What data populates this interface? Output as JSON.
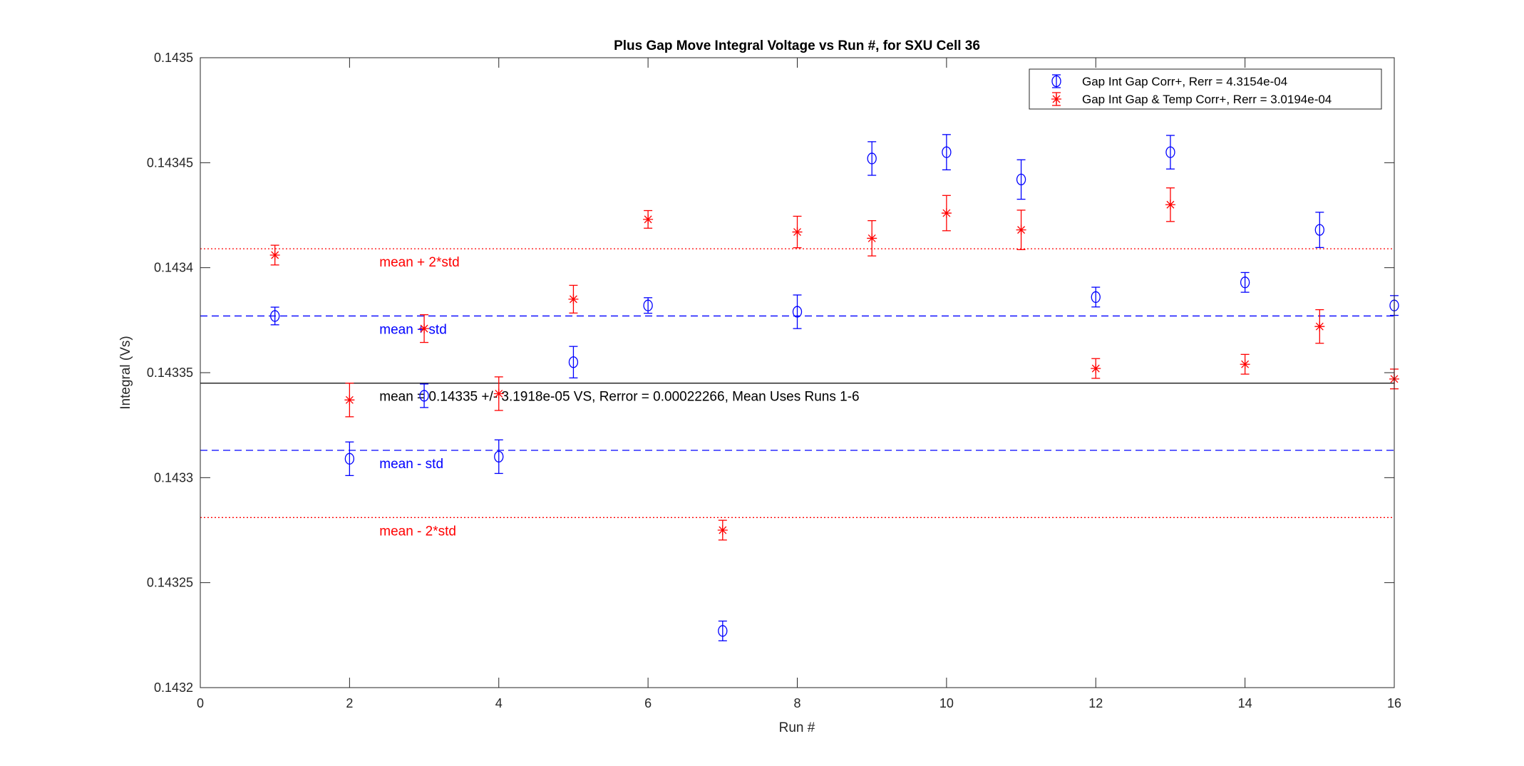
{
  "chart_data": {
    "type": "scatter",
    "title": "Plus Gap Move Integral Voltage vs Run #, for SXU Cell 36",
    "xlabel": "Run #",
    "ylabel": "Integral (Vs)",
    "xlim": [
      0,
      16
    ],
    "ylim": [
      0.1432,
      0.1435
    ],
    "xticks": [
      "0",
      "2",
      "4",
      "6",
      "8",
      "10",
      "12",
      "14",
      "16"
    ],
    "yticks": [
      "0.1432",
      "0.14325",
      "0.1433",
      "0.14335",
      "0.1434",
      "0.14345",
      "0.1435"
    ],
    "grid": false,
    "legend_position": "top-right",
    "series": [
      {
        "name": "Gap Int Gap Corr+, Rerr = 4.3154e-04",
        "marker": "circle",
        "color": "#0000ff",
        "x": [
          1,
          2,
          3,
          4,
          5,
          6,
          7,
          8,
          9,
          10,
          11,
          12,
          13,
          14,
          15,
          16
        ],
        "y": [
          0.143377,
          0.143309,
          0.143339,
          0.14331,
          0.143355,
          0.143382,
          0.143227,
          0.143379,
          0.143452,
          0.143455,
          0.143442,
          0.143386,
          0.143455,
          0.143393,
          0.143418,
          0.143382
        ],
        "err": [
          4.2e-06,
          8e-06,
          5.6e-06,
          8e-06,
          7.5e-06,
          3.7e-06,
          4.7e-06,
          8e-06,
          8e-06,
          8.4e-06,
          9.4e-06,
          4.7e-06,
          8e-06,
          4.7e-06,
          8.4e-06,
          4.7e-06
        ]
      },
      {
        "name": "Gap Int Gap & Temp  Corr+, Rerr = 3.0194e-04",
        "marker": "asterisk",
        "color": "#ff0000",
        "x": [
          1,
          2,
          3,
          4,
          5,
          6,
          7,
          8,
          9,
          10,
          11,
          12,
          13,
          14,
          15,
          16
        ],
        "y": [
          0.143406,
          0.143337,
          0.143371,
          0.14334,
          0.143385,
          0.143423,
          0.143275,
          0.143417,
          0.143414,
          0.143426,
          0.143418,
          0.143352,
          0.14343,
          0.143354,
          0.143372,
          0.143347
        ],
        "err": [
          4.7e-06,
          8e-06,
          6.6e-06,
          8e-06,
          6.6e-06,
          4.2e-06,
          4.7e-06,
          7.5e-06,
          8.4e-06,
          8.4e-06,
          9.4e-06,
          4.7e-06,
          8e-06,
          4.7e-06,
          8e-06,
          4.7e-06
        ]
      }
    ],
    "reference_lines": [
      {
        "y": 0.143409,
        "color": "#ff0000",
        "style": "dotted",
        "label": "mean + 2*std"
      },
      {
        "y": 0.143377,
        "color": "#0000ff",
        "style": "dashed",
        "label": "mean + std"
      },
      {
        "y": 0.143345,
        "color": "#000000",
        "style": "solid",
        "label": "mean = 0.14335 +/- 3.1918e-05 VS, Rerror = 0.00022266, Mean Uses Runs 1-6"
      },
      {
        "y": 0.143313,
        "color": "#0000ff",
        "style": "dashed",
        "label": "mean - std"
      },
      {
        "y": 0.143281,
        "color": "#ff0000",
        "style": "dotted",
        "label": "mean - 2*std"
      }
    ],
    "annotation_x": 2.4
  }
}
